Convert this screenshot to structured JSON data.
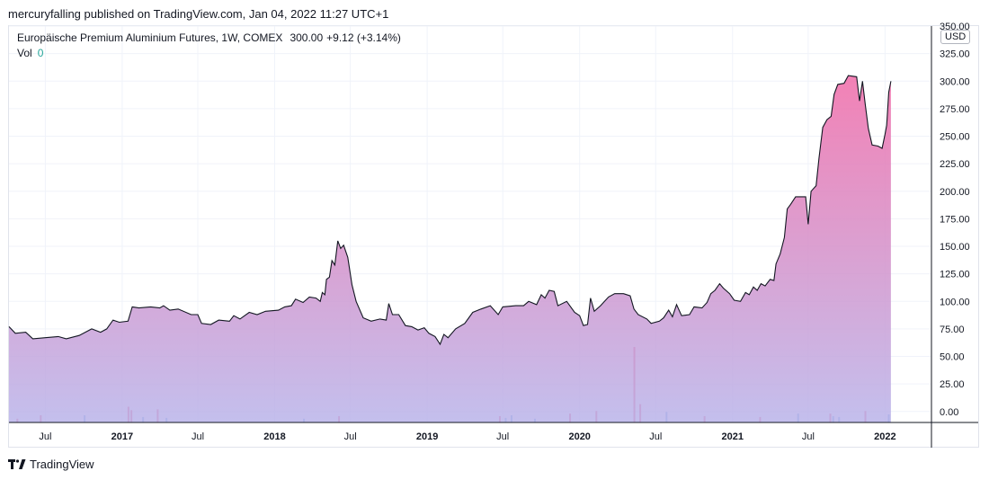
{
  "header": {
    "published": "mercuryfalling published on TradingView.com, Jan 04, 2022 11:27 UTC+1"
  },
  "legend": {
    "symbol": "Europäische Premium Aluminium Futures, 1W, COMEX",
    "last": "300.00",
    "change": "+9.12 (+3.14%)",
    "vol_label": "Vol",
    "vol_value": "0"
  },
  "currency": "USD",
  "footer": {
    "brand": "TradingView"
  },
  "colors": {
    "line": "#131722",
    "area_top": "#f06ba8",
    "area_bottom": "#b9b4ea",
    "grid": "#f0f3fa",
    "vol_up": "#7fb2e5",
    "vol_down": "#ef6b8a",
    "axis_text": "#131722"
  },
  "chart_data": {
    "type": "area",
    "ylim": [
      -10,
      350
    ],
    "y_ticks": [
      "350.00",
      "325.00",
      "300.00",
      "275.00",
      "250.00",
      "225.00",
      "200.00",
      "175.00",
      "150.00",
      "125.00",
      "100.00",
      "75.00",
      "50.00",
      "25.00",
      "0.00"
    ],
    "x_ticks": [
      {
        "label": "Jul",
        "x": "2016-07-01"
      },
      {
        "label": "2017",
        "x": "2017-01-01"
      },
      {
        "label": "Jul",
        "x": "2017-07-01"
      },
      {
        "label": "2018",
        "x": "2018-01-01"
      },
      {
        "label": "Jul",
        "x": "2018-07-01"
      },
      {
        "label": "2019",
        "x": "2019-01-01"
      },
      {
        "label": "Jul",
        "x": "2019-07-01"
      },
      {
        "label": "2020",
        "x": "2020-01-01"
      },
      {
        "label": "Jul",
        "x": "2020-07-01"
      },
      {
        "label": "2021",
        "x": "2021-01-01"
      },
      {
        "label": "Jul",
        "x": "2021-07-01"
      },
      {
        "label": "2022",
        "x": "2022-01-01"
      }
    ],
    "xlim": [
      "2016-04-05",
      "2022-04-20"
    ],
    "series": [
      {
        "points": [
          [
            "2016-04-05",
            77
          ],
          [
            "2016-04-20",
            71
          ],
          [
            "2016-05-15",
            72
          ],
          [
            "2016-06-01",
            66
          ],
          [
            "2016-07-01",
            67
          ],
          [
            "2016-08-01",
            68
          ],
          [
            "2016-08-20",
            66
          ],
          [
            "2016-09-20",
            69
          ],
          [
            "2016-10-20",
            75
          ],
          [
            "2016-11-10",
            72
          ],
          [
            "2016-11-25",
            75
          ],
          [
            "2016-12-10",
            83
          ],
          [
            "2016-12-25",
            81
          ],
          [
            "2017-01-15",
            82
          ],
          [
            "2017-01-25",
            95
          ],
          [
            "2017-02-10",
            94
          ],
          [
            "2017-03-10",
            95
          ],
          [
            "2017-04-01",
            94
          ],
          [
            "2017-04-10",
            96
          ],
          [
            "2017-04-25",
            92
          ],
          [
            "2017-05-15",
            93
          ],
          [
            "2017-06-15",
            88
          ],
          [
            "2017-07-01",
            88
          ],
          [
            "2017-07-10",
            80
          ],
          [
            "2017-08-01",
            79
          ],
          [
            "2017-08-20",
            83
          ],
          [
            "2017-09-15",
            82
          ],
          [
            "2017-09-25",
            87
          ],
          [
            "2017-10-10",
            84
          ],
          [
            "2017-11-01",
            90
          ],
          [
            "2017-11-20",
            88
          ],
          [
            "2017-12-10",
            91
          ],
          [
            "2018-01-10",
            92
          ],
          [
            "2018-01-25",
            95
          ],
          [
            "2018-02-10",
            96
          ],
          [
            "2018-02-20",
            102
          ],
          [
            "2018-03-10",
            99
          ],
          [
            "2018-03-25",
            104
          ],
          [
            "2018-04-10",
            103
          ],
          [
            "2018-04-20",
            100
          ],
          [
            "2018-04-25",
            108
          ],
          [
            "2018-05-01",
            106
          ],
          [
            "2018-05-05",
            120
          ],
          [
            "2018-05-12",
            122
          ],
          [
            "2018-05-18",
            137
          ],
          [
            "2018-05-25",
            133
          ],
          [
            "2018-06-01",
            155
          ],
          [
            "2018-06-08",
            148
          ],
          [
            "2018-06-15",
            151
          ],
          [
            "2018-06-25",
            140
          ],
          [
            "2018-07-05",
            115
          ],
          [
            "2018-07-15",
            100
          ],
          [
            "2018-08-01",
            85
          ],
          [
            "2018-08-20",
            82
          ],
          [
            "2018-09-10",
            84
          ],
          [
            "2018-09-25",
            83
          ],
          [
            "2018-10-01",
            98
          ],
          [
            "2018-10-10",
            88
          ],
          [
            "2018-10-25",
            88
          ],
          [
            "2018-11-10",
            78
          ],
          [
            "2018-11-25",
            77
          ],
          [
            "2018-12-10",
            74
          ],
          [
            "2018-12-25",
            76
          ],
          [
            "2019-01-05",
            71
          ],
          [
            "2019-01-20",
            68
          ],
          [
            "2019-02-01",
            61
          ],
          [
            "2019-02-10",
            70
          ],
          [
            "2019-02-20",
            67
          ],
          [
            "2019-03-10",
            75
          ],
          [
            "2019-04-01",
            80
          ],
          [
            "2019-04-20",
            90
          ],
          [
            "2019-05-10",
            93
          ],
          [
            "2019-06-01",
            96
          ],
          [
            "2019-06-20",
            88
          ],
          [
            "2019-07-01",
            95
          ],
          [
            "2019-08-01",
            96
          ],
          [
            "2019-08-20",
            96
          ],
          [
            "2019-09-01",
            100
          ],
          [
            "2019-09-20",
            97
          ],
          [
            "2019-10-01",
            106
          ],
          [
            "2019-10-10",
            103
          ],
          [
            "2019-10-20",
            110
          ],
          [
            "2019-11-01",
            109
          ],
          [
            "2019-11-10",
            96
          ],
          [
            "2019-12-01",
            100
          ],
          [
            "2019-12-20",
            90
          ],
          [
            "2020-01-01",
            87
          ],
          [
            "2020-01-10",
            78
          ],
          [
            "2020-01-20",
            79
          ],
          [
            "2020-01-27",
            103
          ],
          [
            "2020-02-05",
            91
          ],
          [
            "2020-02-20",
            96
          ],
          [
            "2020-03-10",
            104
          ],
          [
            "2020-03-25",
            107
          ],
          [
            "2020-04-15",
            107
          ],
          [
            "2020-05-01",
            105
          ],
          [
            "2020-05-10",
            93
          ],
          [
            "2020-05-20",
            88
          ],
          [
            "2020-06-10",
            84
          ],
          [
            "2020-06-20",
            80
          ],
          [
            "2020-07-10",
            82
          ],
          [
            "2020-07-20",
            85
          ],
          [
            "2020-08-01",
            92
          ],
          [
            "2020-08-10",
            86
          ],
          [
            "2020-08-20",
            97
          ],
          [
            "2020-09-01",
            87
          ],
          [
            "2020-09-20",
            88
          ],
          [
            "2020-10-01",
            95
          ],
          [
            "2020-10-20",
            94
          ],
          [
            "2020-11-01",
            99
          ],
          [
            "2020-11-10",
            107
          ],
          [
            "2020-11-20",
            110
          ],
          [
            "2020-12-01",
            116
          ],
          [
            "2020-12-10",
            112
          ],
          [
            "2020-12-25",
            107
          ],
          [
            "2021-01-05",
            101
          ],
          [
            "2021-01-20",
            100
          ],
          [
            "2021-02-01",
            108
          ],
          [
            "2021-02-10",
            106
          ],
          [
            "2021-02-20",
            113
          ],
          [
            "2021-03-01",
            110
          ],
          [
            "2021-03-10",
            116
          ],
          [
            "2021-03-20",
            114
          ],
          [
            "2021-04-01",
            120
          ],
          [
            "2021-04-10",
            119
          ],
          [
            "2021-04-15",
            134
          ],
          [
            "2021-04-25",
            143
          ],
          [
            "2021-05-05",
            158
          ],
          [
            "2021-05-12",
            184
          ],
          [
            "2021-05-20",
            188
          ],
          [
            "2021-06-01",
            195
          ],
          [
            "2021-06-25",
            195
          ],
          [
            "2021-07-01",
            170
          ],
          [
            "2021-07-08",
            200
          ],
          [
            "2021-07-20",
            205
          ],
          [
            "2021-07-27",
            230
          ],
          [
            "2021-08-05",
            258
          ],
          [
            "2021-08-15",
            265
          ],
          [
            "2021-08-25",
            268
          ],
          [
            "2021-09-01",
            288
          ],
          [
            "2021-09-10",
            297
          ],
          [
            "2021-09-25",
            298
          ],
          [
            "2021-10-05",
            305
          ],
          [
            "2021-10-25",
            304
          ],
          [
            "2021-11-01",
            282
          ],
          [
            "2021-11-08",
            300
          ],
          [
            "2021-11-15",
            278
          ],
          [
            "2021-11-22",
            257
          ],
          [
            "2021-12-01",
            242
          ],
          [
            "2021-12-15",
            241
          ],
          [
            "2021-12-25",
            239
          ],
          [
            "2022-01-01",
            252
          ],
          [
            "2022-01-05",
            260
          ],
          [
            "2022-01-10",
            290
          ],
          [
            "2022-01-15",
            300
          ]
        ]
      }
    ],
    "volume": {
      "up": [
        [
          "2016-10-03",
          5
        ],
        [
          "2017-02-20",
          3
        ],
        [
          "2017-04-17",
          2
        ],
        [
          "2018-03-12",
          1
        ],
        [
          "2019-07-08",
          2
        ],
        [
          "2019-07-22",
          5
        ],
        [
          "2019-09-16",
          1
        ],
        [
          "2020-07-27",
          9
        ],
        [
          "2021-06-07",
          7
        ],
        [
          "2021-08-30",
          4
        ],
        [
          "2021-09-13",
          3
        ],
        [
          "2022-01-10",
          6
        ]
      ],
      "down": [
        [
          "2016-04-25",
          1
        ],
        [
          "2016-06-20",
          5
        ],
        [
          "2017-01-16",
          15
        ],
        [
          "2017-01-23",
          11
        ],
        [
          "2017-03-27",
          12
        ],
        [
          "2018-06-04",
          4
        ],
        [
          "2019-06-24",
          4
        ],
        [
          "2019-12-09",
          7
        ],
        [
          "2020-02-10",
          10
        ],
        [
          "2020-05-11",
          85
        ],
        [
          "2020-05-25",
          18
        ],
        [
          "2020-10-26",
          4
        ],
        [
          "2021-03-08",
          3
        ],
        [
          "2021-08-23",
          7
        ],
        [
          "2021-11-15",
          10
        ]
      ]
    }
  }
}
